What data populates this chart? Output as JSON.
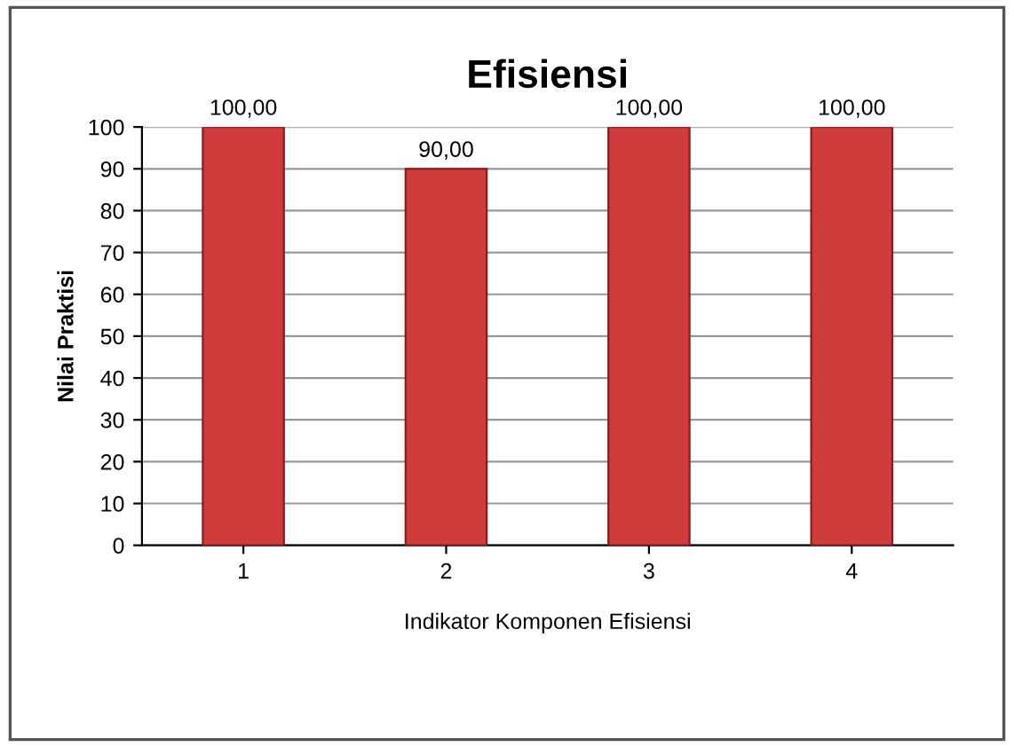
{
  "chart_data": {
    "type": "bar",
    "title": "Efisiensi",
    "xlabel": "Indikator Komponen Efisiensi",
    "ylabel": "Nilai Praktisi",
    "categories": [
      "1",
      "2",
      "3",
      "4"
    ],
    "values": [
      100,
      90,
      100,
      100
    ],
    "value_labels": [
      "100,00",
      "90,00",
      "100,00",
      "100,00"
    ],
    "color": "#d03c3c",
    "ylim": [
      0,
      100
    ],
    "yticks": [
      0,
      10,
      20,
      30,
      40,
      50,
      60,
      70,
      80,
      90,
      100
    ],
    "grid": "y",
    "legend": false
  }
}
